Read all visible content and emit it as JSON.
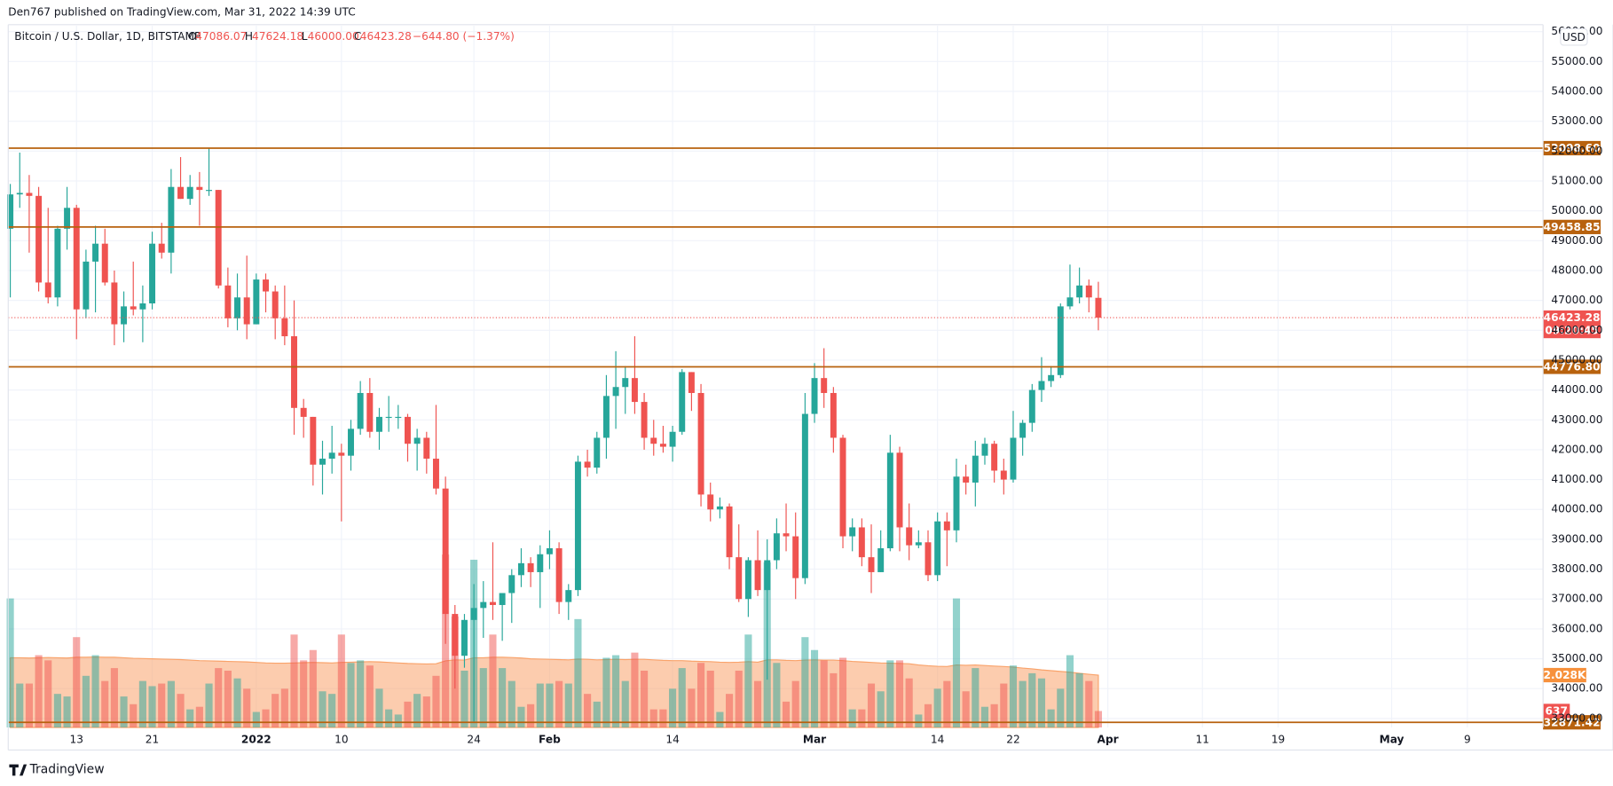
{
  "header": {
    "byline": "Den767 published on TradingView.com, Mar 31, 2022 14:39 UTC",
    "footer": "TradingView",
    "currency": "USD"
  },
  "chart_data": {
    "type": "candlestick",
    "title": "Bitcoin / U.S. Dollar, 1D, BITSTAMP",
    "ohlc_legend": [
      {
        "label": "O",
        "value": "47086.07"
      },
      {
        "label": "H",
        "value": "47624.18"
      },
      {
        "label": "L",
        "value": "46000.00"
      },
      {
        "label": "C",
        "value": "46423.28"
      }
    ],
    "change": "−644.80 (−1.37%)",
    "countdown": "09:20:45",
    "up_color": "#26a69a",
    "down_color": "#ef5350",
    "level_color": "#b8620e",
    "volume_ma_color": "#f9a36b",
    "grid": true,
    "x": [
      "2021-12-06",
      "2021-12-07",
      "2021-12-08",
      "2021-12-09",
      "2021-12-10",
      "2021-12-11",
      "2021-12-12",
      "2021-12-13",
      "2021-12-14",
      "2021-12-15",
      "2021-12-16",
      "2021-12-17",
      "2021-12-18",
      "2021-12-19",
      "2021-12-20",
      "2021-12-21",
      "2021-12-22",
      "2021-12-23",
      "2021-12-24",
      "2021-12-25",
      "2021-12-26",
      "2021-12-27",
      "2021-12-28",
      "2021-12-29",
      "2021-12-30",
      "2021-12-31",
      "2022-01-01",
      "2022-01-02",
      "2022-01-03",
      "2022-01-04",
      "2022-01-05",
      "2022-01-06",
      "2022-01-07",
      "2022-01-08",
      "2022-01-09",
      "2022-01-10",
      "2022-01-11",
      "2022-01-12",
      "2022-01-13",
      "2022-01-14",
      "2022-01-15",
      "2022-01-16",
      "2022-01-17",
      "2022-01-18",
      "2022-01-19",
      "2022-01-20",
      "2022-01-21",
      "2022-01-22",
      "2022-01-23",
      "2022-01-24",
      "2022-01-25",
      "2022-01-26",
      "2022-01-27",
      "2022-01-28",
      "2022-01-29",
      "2022-01-30",
      "2022-01-31",
      "2022-02-01",
      "2022-02-02",
      "2022-02-03",
      "2022-02-04",
      "2022-02-05",
      "2022-02-06",
      "2022-02-07",
      "2022-02-08",
      "2022-02-09",
      "2022-02-10",
      "2022-02-11",
      "2022-02-12",
      "2022-02-13",
      "2022-02-14",
      "2022-02-15",
      "2022-02-16",
      "2022-02-17",
      "2022-02-18",
      "2022-02-19",
      "2022-02-20",
      "2022-02-21",
      "2022-02-22",
      "2022-02-23",
      "2022-02-24",
      "2022-02-25",
      "2022-02-26",
      "2022-02-27",
      "2022-02-28",
      "2022-03-01",
      "2022-03-02",
      "2022-03-03",
      "2022-03-04",
      "2022-03-05",
      "2022-03-06",
      "2022-03-07",
      "2022-03-08",
      "2022-03-09",
      "2022-03-10",
      "2022-03-11",
      "2022-03-12",
      "2022-03-13",
      "2022-03-14",
      "2022-03-15",
      "2022-03-16",
      "2022-03-17",
      "2022-03-18",
      "2022-03-19",
      "2022-03-20",
      "2022-03-21",
      "2022-03-22",
      "2022-03-23",
      "2022-03-24",
      "2022-03-25",
      "2022-03-26",
      "2022-03-27",
      "2022-03-28",
      "2022-03-29",
      "2022-03-30",
      "2022-03-31"
    ],
    "open": [
      49400,
      50550,
      50600,
      50500,
      47600,
      47100,
      49400,
      50100,
      46700,
      48300,
      48900,
      47600,
      46200,
      46800,
      46700,
      46900,
      48900,
      48600,
      50800,
      50400,
      50800,
      50700,
      50700,
      47500,
      46400,
      47100,
      46200,
      47700,
      47300,
      46400,
      45800,
      43400,
      43100,
      41500,
      41700,
      41900,
      41800,
      42700,
      43900,
      42600,
      43100,
      43100,
      43100,
      42200,
      42400,
      41700,
      40700,
      36500,
      35100,
      36300,
      36700,
      36900,
      36800,
      37200,
      37800,
      38200,
      37900,
      38500,
      38700,
      36900,
      37300,
      41600,
      41400,
      42400,
      43800,
      44100,
      44400,
      43600,
      42400,
      42200,
      42100,
      42600,
      44600,
      43900,
      40500,
      40000,
      40100,
      38400,
      37000,
      38300,
      37300,
      38300,
      39200,
      39100,
      37700,
      43200,
      44400,
      43900,
      42400,
      39100,
      39400,
      38400,
      37900,
      38700,
      41900,
      39400,
      38800,
      38900,
      37800,
      39600,
      39300,
      41100,
      40900,
      41800,
      42200,
      41300,
      41000,
      42400,
      42900,
      44000,
      44300,
      44500,
      46800,
      47100,
      47500,
      47086.07
    ],
    "high": [
      50900,
      51950,
      51200,
      50800,
      50100,
      49500,
      50800,
      50200,
      48700,
      49500,
      49400,
      48000,
      47300,
      48300,
      47500,
      49300,
      49600,
      51400,
      51800,
      51200,
      51300,
      52100,
      50700,
      48100,
      47900,
      48500,
      47900,
      47900,
      47500,
      47500,
      47000,
      43700,
      43100,
      42300,
      42800,
      42200,
      43000,
      44300,
      44400,
      43400,
      43800,
      43500,
      43200,
      42700,
      42600,
      43500,
      41100,
      36800,
      36500,
      37500,
      37600,
      38900,
      37200,
      38000,
      38700,
      38400,
      38800,
      39300,
      38900,
      37500,
      41800,
      42000,
      42600,
      44500,
      45300,
      44800,
      45800,
      43900,
      43000,
      42800,
      42800,
      44700,
      44600,
      44200,
      40900,
      40400,
      40200,
      39500,
      38400,
      39300,
      39000,
      39700,
      40200,
      39900,
      43900,
      44900,
      45400,
      44100,
      42500,
      39700,
      39700,
      39500,
      39300,
      42500,
      42100,
      40200,
      39300,
      39300,
      39900,
      39900,
      41700,
      41500,
      42300,
      42400,
      42300,
      41700,
      43300,
      43000,
      44200,
      45100,
      44800,
      46900,
      48200,
      48100,
      47700,
      47624.18
    ],
    "low": [
      47100,
      50100,
      48600,
      47300,
      46900,
      46800,
      48700,
      45700,
      46400,
      46600,
      47500,
      45500,
      45600,
      46500,
      45600,
      46700,
      48400,
      47900,
      50400,
      50200,
      49500,
      50500,
      47400,
      46100,
      46000,
      45700,
      46200,
      46600,
      45700,
      45500,
      42500,
      42400,
      40800,
      40500,
      41200,
      39600,
      41300,
      42500,
      42400,
      42000,
      42600,
      42700,
      41600,
      41300,
      41200,
      40500,
      35500,
      34000,
      34700,
      32900,
      35700,
      36300,
      35600,
      36200,
      37400,
      37400,
      36700,
      38000,
      36500,
      36300,
      37100,
      41100,
      41200,
      41700,
      42700,
      43200,
      43200,
      42000,
      41800,
      41900,
      41600,
      42500,
      43300,
      40100,
      39600,
      39700,
      38000,
      36900,
      36400,
      37100,
      34300,
      38000,
      38600,
      37000,
      37500,
      42900,
      43400,
      41900,
      38700,
      38600,
      38100,
      37200,
      37900,
      38600,
      38600,
      38300,
      38700,
      37600,
      37600,
      38100,
      38900,
      40500,
      40100,
      41500,
      40900,
      40500,
      40900,
      41800,
      42600,
      43600,
      44100,
      44400,
      46700,
      46900,
      46600,
      46000
    ],
    "close": [
      50550,
      50600,
      50500,
      47600,
      47100,
      49400,
      50100,
      46700,
      48300,
      48900,
      47600,
      46200,
      46800,
      46700,
      46900,
      48900,
      48600,
      50800,
      50400,
      50800,
      50700,
      50700,
      47500,
      46400,
      47100,
      46200,
      47700,
      47300,
      46400,
      45800,
      43400,
      43100,
      41500,
      41700,
      41900,
      41800,
      42700,
      43900,
      42600,
      43100,
      43100,
      43100,
      42200,
      42400,
      41700,
      40700,
      36500,
      35100,
      36300,
      36700,
      36900,
      36800,
      37200,
      37800,
      38200,
      37900,
      38500,
      38700,
      36900,
      37300,
      41600,
      41400,
      42400,
      43800,
      44100,
      44400,
      43600,
      42400,
      42200,
      42100,
      42600,
      44600,
      43900,
      40500,
      40000,
      40100,
      38400,
      37000,
      38300,
      37300,
      38300,
      39200,
      39100,
      37700,
      43200,
      44400,
      43900,
      42400,
      39100,
      39400,
      38400,
      37900,
      38700,
      41900,
      39400,
      38800,
      38900,
      37800,
      39600,
      39300,
      41100,
      40900,
      41800,
      42200,
      41300,
      41000,
      42400,
      42900,
      44000,
      44300,
      44500,
      46800,
      47100,
      47500,
      47100,
      46423.28
    ],
    "volume": [
      5000,
      1700,
      1700,
      2800,
      2600,
      1300,
      1200,
      3500,
      2000,
      2800,
      1800,
      2300,
      1200,
      900,
      1800,
      1600,
      1700,
      1800,
      1300,
      700,
      800,
      1700,
      2300,
      2200,
      1900,
      1500,
      600,
      700,
      1300,
      1500,
      3600,
      2600,
      3000,
      1400,
      1300,
      3600,
      2500,
      2600,
      2400,
      1500,
      700,
      500,
      1000,
      1300,
      1200,
      2000,
      6700,
      4300,
      2200,
      6500,
      2300,
      3600,
      2300,
      1800,
      800,
      900,
      1700,
      1700,
      1800,
      1700,
      4200,
      1300,
      1000,
      2700,
      2800,
      1800,
      2900,
      2200,
      700,
      700,
      1500,
      2300,
      1500,
      2500,
      2200,
      600,
      1300,
      2200,
      3600,
      1800,
      6400,
      2500,
      1000,
      1800,
      3500,
      3000,
      2600,
      2100,
      2700,
      700,
      700,
      1700,
      1400,
      2600,
      2600,
      1900,
      500,
      900,
      1500,
      1800,
      5000,
      1400,
      2300,
      800,
      900,
      1700,
      2400,
      1800,
      2100,
      1900,
      700,
      1500,
      2800,
      2100,
      1800,
      637
    ],
    "volume_ma": {
      "last_value_label": "2.028K",
      "values": [
        2700,
        2700,
        2690,
        2700,
        2710,
        2700,
        2690,
        2720,
        2720,
        2730,
        2720,
        2720,
        2700,
        2680,
        2670,
        2660,
        2650,
        2640,
        2630,
        2610,
        2590,
        2580,
        2570,
        2560,
        2550,
        2540,
        2520,
        2500,
        2490,
        2490,
        2500,
        2510,
        2520,
        2510,
        2500,
        2520,
        2530,
        2540,
        2550,
        2540,
        2520,
        2500,
        2480,
        2470,
        2460,
        2470,
        2580,
        2620,
        2610,
        2700,
        2700,
        2720,
        2720,
        2710,
        2690,
        2660,
        2650,
        2640,
        2630,
        2620,
        2650,
        2640,
        2620,
        2630,
        2640,
        2630,
        2640,
        2640,
        2620,
        2600,
        2590,
        2590,
        2570,
        2560,
        2550,
        2530,
        2520,
        2530,
        2550,
        2530,
        2620,
        2620,
        2600,
        2590,
        2610,
        2620,
        2610,
        2610,
        2590,
        2560,
        2540,
        2520,
        2500,
        2490,
        2480,
        2470,
        2420,
        2390,
        2370,
        2360,
        2420,
        2410,
        2420,
        2400,
        2380,
        2360,
        2340,
        2300,
        2270,
        2230,
        2200,
        2170,
        2140,
        2100,
        2060,
        2028
      ]
    },
    "levels": [
      {
        "value": 52098.6,
        "label": "52098.60"
      },
      {
        "value": 49458.85,
        "label": "49458.85"
      },
      {
        "value": 44776.8,
        "label": "44776.80"
      },
      {
        "value": 32871.42,
        "label": "32871.42"
      }
    ],
    "xlim": [
      "2021-12-06",
      "2022-05-17"
    ],
    "xticks": [
      {
        "value": "2021-12-13",
        "label": "13"
      },
      {
        "value": "2021-12-21",
        "label": "21"
      },
      {
        "value": "2022-01-01",
        "label": "2022"
      },
      {
        "value": "2022-01-10",
        "label": "10"
      },
      {
        "value": "2022-01-24",
        "label": "24"
      },
      {
        "value": "2022-02-01",
        "label": "Feb"
      },
      {
        "value": "2022-02-14",
        "label": "14"
      },
      {
        "value": "2022-03-01",
        "label": "Mar"
      },
      {
        "value": "2022-03-14",
        "label": "14"
      },
      {
        "value": "2022-03-22",
        "label": "22"
      },
      {
        "value": "2022-04-01",
        "label": "Apr"
      },
      {
        "value": "2022-04-11",
        "label": "11"
      },
      {
        "value": "2022-04-19",
        "label": "19"
      },
      {
        "value": "2022-05-01",
        "label": "May"
      },
      {
        "value": "2022-05-09",
        "label": "9"
      }
    ],
    "ylim": [
      32700,
      56200
    ],
    "yticks": [
      {
        "value": 33000,
        "label": "33000.00"
      },
      {
        "value": 34000,
        "label": "34000.00"
      },
      {
        "value": 35000,
        "label": "35000.00"
      },
      {
        "value": 36000,
        "label": "36000.00"
      },
      {
        "value": 37000,
        "label": "37000.00"
      },
      {
        "value": 38000,
        "label": "38000.00"
      },
      {
        "value": 39000,
        "label": "39000.00"
      },
      {
        "value": 40000,
        "label": "40000.00"
      },
      {
        "value": 41000,
        "label": "41000.00"
      },
      {
        "value": 42000,
        "label": "42000.00"
      },
      {
        "value": 43000,
        "label": "43000.00"
      },
      {
        "value": 44000,
        "label": "44000.00"
      },
      {
        "value": 45000,
        "label": "45000.00"
      },
      {
        "value": 46000,
        "label": "46000.00"
      },
      {
        "value": 47000,
        "label": "47000.00"
      },
      {
        "value": 48000,
        "label": "48000.00"
      },
      {
        "value": 49000,
        "label": "49000.00"
      },
      {
        "value": 50000,
        "label": "50000.00"
      },
      {
        "value": 51000,
        "label": "51000.00"
      },
      {
        "value": 52000,
        "label": "52000.00"
      },
      {
        "value": 53000,
        "label": "53000.00"
      },
      {
        "value": 54000,
        "label": "54000.00"
      },
      {
        "value": 55000,
        "label": "55000.00"
      },
      {
        "value": 56000,
        "label": "56000.00"
      }
    ],
    "y2lim": [
      0,
      27200
    ]
  }
}
